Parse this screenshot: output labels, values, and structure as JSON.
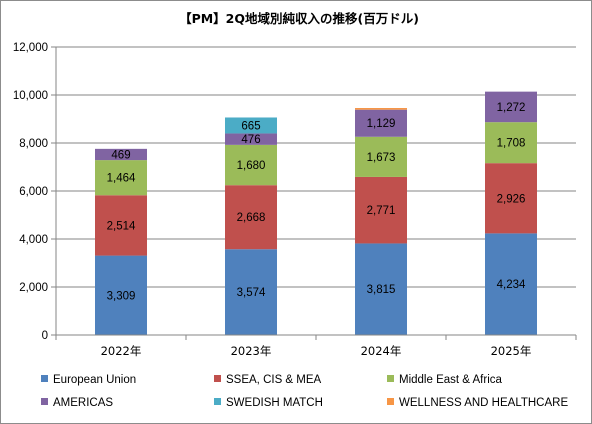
{
  "chart_data": {
    "type": "bar",
    "stacked": true,
    "title": "【PM】2Q地域別純収入の推移(百万ドル)",
    "categories": [
      "2022年",
      "2023年",
      "2024年",
      "2025年"
    ],
    "ylim": [
      0,
      12000
    ],
    "yticks": [
      0,
      2000,
      4000,
      6000,
      8000,
      10000,
      12000
    ],
    "ytick_labels": [
      "0",
      "2,000",
      "4,000",
      "6,000",
      "8,000",
      "10,000",
      "12,000"
    ],
    "grid": true,
    "legend_position": "bottom",
    "series": [
      {
        "name": "European Union",
        "color": "#4f81bd",
        "values": [
          3309,
          3574,
          3815,
          4234
        ],
        "labels": [
          "3,309",
          "3,574",
          "3,815",
          "4,234"
        ]
      },
      {
        "name": "SSEA, CIS & MEA",
        "color": "#c0504d",
        "values": [
          2514,
          2668,
          2771,
          2926
        ],
        "labels": [
          "2,514",
          "2,668",
          "2,771",
          "2,926"
        ]
      },
      {
        "name": "Middle East & Africa",
        "color": "#9bbb59",
        "values": [
          1464,
          1680,
          1673,
          1708
        ],
        "labels": [
          "1,464",
          "1,680",
          "1,673",
          "1,708"
        ]
      },
      {
        "name": "AMERICAS",
        "color": "#8064a2",
        "values": [
          469,
          476,
          1129,
          1272
        ],
        "labels": [
          "469",
          "476",
          "1,129",
          "1,272"
        ]
      },
      {
        "name": "SWEDISH MATCH",
        "color": "#4bacc6",
        "values": [
          0,
          665,
          0,
          0
        ],
        "labels": [
          "",
          "665",
          "",
          ""
        ]
      },
      {
        "name": "WELLNESS AND HEALTHCARE",
        "color": "#f79646",
        "values": [
          0,
          0,
          70,
          0
        ],
        "labels": [
          "",
          "",
          "",
          ""
        ]
      }
    ]
  }
}
